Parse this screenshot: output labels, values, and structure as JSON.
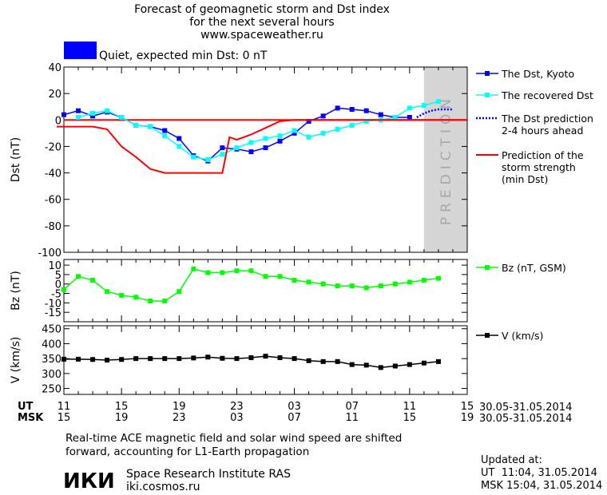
{
  "header": {
    "title_line1": "Forecast of geomagnetic storm and Dst index",
    "title_line2": "for the next several hours",
    "website": "www.spaceweather.ru",
    "status_text": "Quiet, expected min Dst: 0 nT"
  },
  "colors": {
    "dst_kyoto": "#0000ff",
    "recovered": "#00ffff",
    "prediction_dotted": "#0000ff",
    "storm_strength": "#ff0000",
    "bz": "#00ff00",
    "speed": "#000000",
    "prediction_shade": "#d6d6d6",
    "status_box": "#0000ff"
  },
  "prediction_label": "PREDICTION",
  "time_axis": {
    "ut_label": "UT",
    "msk_label": "MSK",
    "ut_ticks": [
      "11",
      "15",
      "19",
      "23",
      "03",
      "07",
      "11",
      "15"
    ],
    "msk_ticks": [
      "15",
      "19",
      "23",
      "03",
      "07",
      "11",
      "15",
      "19"
    ],
    "date_range_ut": "30.05-31.05.2014",
    "date_range_msk": "30.05-31.05.2014"
  },
  "footer": {
    "note_line1": "Real-time ACE magnetic field and solar wind speed are shifted",
    "note_line2": "forward, accounting for L1-Earth propagation",
    "institute_logo": "ИКИ",
    "institute_name": "Space Research Institute RAS",
    "institute_site": "iki.cosmos.ru",
    "updated_label": "Updated at:",
    "updated_ut": "UT  11:04, 31.05.2014",
    "updated_msk": "MSK 15:04, 31.05.2014"
  },
  "chart_data": [
    {
      "type": "line",
      "ylabel": "Dst (nT)",
      "ylim": [
        -100,
        40
      ],
      "yticks": [
        40,
        20,
        0,
        -20,
        -40,
        -60,
        -80,
        -100
      ],
      "xlim": [
        0,
        28
      ],
      "prediction_region": [
        25,
        28
      ],
      "zero_line": true,
      "legend_position": "right",
      "series": [
        {
          "name": "The Dst, Kyoto",
          "color": "#0000ff",
          "marker": "square",
          "x": [
            0,
            1,
            2,
            3,
            4,
            5,
            6,
            7,
            8,
            9,
            10,
            11,
            12,
            13,
            14,
            15,
            16,
            17,
            18,
            19,
            20,
            21,
            22,
            23,
            24
          ],
          "y": [
            4,
            7,
            3,
            6,
            2,
            -4,
            -5,
            -8,
            -14,
            -27,
            -31,
            -21,
            -22,
            -24,
            -21,
            -16,
            -10,
            -1,
            3,
            9,
            8,
            7,
            4,
            2,
            2
          ]
        },
        {
          "name": "The recovered Dst",
          "color": "#00ffff",
          "marker": "square",
          "x": [
            1,
            2,
            3,
            4,
            5,
            6,
            7,
            8,
            9,
            10,
            11,
            12,
            13,
            14,
            15,
            16,
            17,
            18,
            19,
            20,
            21,
            22,
            23,
            24,
            25,
            26
          ],
          "y": [
            2,
            5,
            7,
            2,
            -4,
            -5,
            -12,
            -20,
            -28,
            -30,
            -26,
            -21,
            -17,
            -14,
            -12,
            -8,
            -13,
            -10,
            -7,
            -4,
            -1,
            0,
            2,
            9,
            11,
            14
          ]
        },
        {
          "name": "The Dst prediction 2-4 hours ahead",
          "color": "#0000ff",
          "style": "dotted",
          "x": [
            24.5,
            25,
            25.5,
            26,
            27
          ],
          "y": [
            2,
            5,
            7,
            8,
            8
          ]
        },
        {
          "name": "Prediction of the storm strength (min Dst)",
          "color": "#ff0000",
          "style": "step",
          "x": [
            -0.5,
            2,
            3,
            4,
            5,
            6,
            7,
            8,
            11,
            11.5,
            12,
            13,
            14,
            15,
            16,
            17,
            18,
            28
          ],
          "y": [
            -5,
            -5,
            -7,
            -20,
            -28,
            -37,
            -40,
            -40,
            -40,
            -13,
            -15,
            -11,
            -6,
            -1,
            0,
            0,
            0,
            0
          ]
        }
      ]
    },
    {
      "type": "line",
      "ylabel": "Bz (nT)",
      "ylim": [
        -20,
        13
      ],
      "yticks": [
        10,
        5,
        0,
        -5,
        -10,
        -15
      ],
      "xlim": [
        0,
        28
      ],
      "legend_position": "right",
      "series": [
        {
          "name": "Bz (nT, GSM)",
          "color": "#00ff00",
          "marker": "square",
          "x": [
            0,
            1,
            2,
            3,
            4,
            5,
            6,
            7,
            8,
            9,
            10,
            11,
            12,
            13,
            14,
            15,
            16,
            17,
            18,
            19,
            20,
            21,
            22,
            23,
            24,
            25,
            26
          ],
          "y": [
            -3,
            4,
            2,
            -4,
            -6,
            -7,
            -9,
            -9,
            -4,
            8,
            6,
            6,
            7,
            7,
            4,
            4,
            2,
            1,
            0,
            -1,
            -1,
            -2,
            -1,
            0,
            1,
            2,
            3
          ]
        }
      ]
    },
    {
      "type": "line",
      "ylabel": "V (km/s)",
      "ylim": [
        230,
        460
      ],
      "yticks": [
        450,
        400,
        350,
        300,
        250
      ],
      "xlim": [
        0,
        28
      ],
      "legend_position": "right",
      "series": [
        {
          "name": "V (km/s)",
          "color": "#000000",
          "marker": "square",
          "x": [
            0,
            1,
            2,
            3,
            4,
            5,
            6,
            7,
            8,
            9,
            10,
            11,
            12,
            13,
            14,
            15,
            16,
            17,
            18,
            19,
            20,
            21,
            22,
            23,
            24,
            25,
            26
          ],
          "y": [
            348,
            348,
            347,
            345,
            347,
            350,
            350,
            350,
            350,
            352,
            355,
            351,
            350,
            353,
            358,
            353,
            350,
            343,
            340,
            340,
            330,
            328,
            320,
            325,
            330,
            335,
            340
          ]
        }
      ]
    }
  ]
}
